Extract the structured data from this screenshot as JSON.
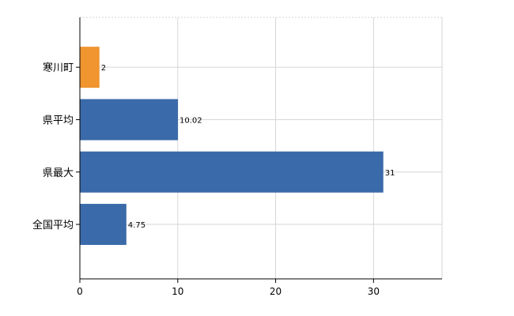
{
  "chart_data": {
    "type": "bar",
    "orientation": "horizontal",
    "categories": [
      "寒川町",
      "県平均",
      "県最大",
      "全国平均"
    ],
    "values": [
      2,
      10.02,
      31,
      4.75
    ],
    "value_labels": [
      "2",
      "10.02",
      "31",
      "4.75"
    ],
    "bar_colors": [
      "#f0952f",
      "#3a6aa9",
      "#3a6aa9",
      "#3a6aa9"
    ],
    "xlim": [
      0,
      37
    ],
    "xticks": [
      0,
      10,
      20,
      30
    ],
    "xtick_labels": [
      "0",
      "10",
      "20",
      "30"
    ],
    "title": "",
    "xlabel": "",
    "ylabel": "",
    "grid": true,
    "legend": "none"
  }
}
